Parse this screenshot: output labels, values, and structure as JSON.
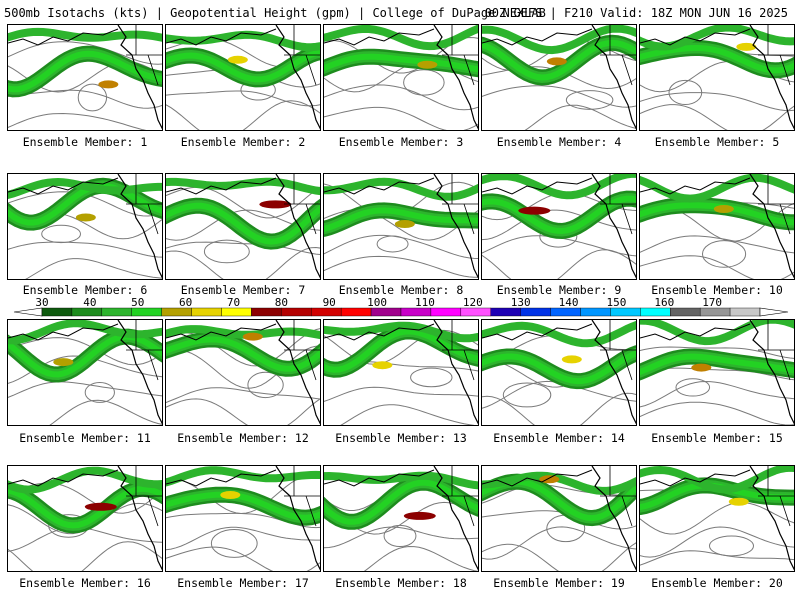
{
  "header": {
    "title": "500mb Isotachs (kts) | Geopotential Height (gpm) | College of DuPage NEXLAB",
    "run": "00Z GEFS | F210 Valid: 18Z MON JUN 16 2025"
  },
  "members": [
    {
      "label": "Ensemble Member: 1",
      "max": 80
    },
    {
      "label": "Ensemble Member: 2",
      "max": 70
    },
    {
      "label": "Ensemble Member: 3",
      "max": 60
    },
    {
      "label": "Ensemble Member: 4",
      "max": 80
    },
    {
      "label": "Ensemble Member: 5",
      "max": 70
    },
    {
      "label": "Ensemble Member: 6",
      "max": 60
    },
    {
      "label": "Ensemble Member: 7",
      "max": 90
    },
    {
      "label": "Ensemble Member: 8",
      "max": 60
    },
    {
      "label": "Ensemble Member: 9",
      "max": 90
    },
    {
      "label": "Ensemble Member: 10",
      "max": 60
    },
    {
      "label": "Ensemble Member: 11",
      "max": 60
    },
    {
      "label": "Ensemble Member: 12",
      "max": 80
    },
    {
      "label": "Ensemble Member: 13",
      "max": 70
    },
    {
      "label": "Ensemble Member: 14",
      "max": 70
    },
    {
      "label": "Ensemble Member: 15",
      "max": 80
    },
    {
      "label": "Ensemble Member: 16",
      "max": 90
    },
    {
      "label": "Ensemble Member: 17",
      "max": 70
    },
    {
      "label": "Ensemble Member: 18",
      "max": 90
    },
    {
      "label": "Ensemble Member: 19",
      "max": 80
    },
    {
      "label": "Ensemble Member: 20",
      "max": 70
    }
  ],
  "legend": {
    "ticks": [
      "30",
      "40",
      "50",
      "60",
      "70",
      "80",
      "90",
      "100",
      "110",
      "120",
      "130",
      "140",
      "150",
      "160",
      "170"
    ],
    "colors": [
      "#0f5a0f",
      "#1e8c1e",
      "#2db42d",
      "#23d223",
      "#b4a000",
      "#e6d200",
      "#ffff00",
      "#8c0000",
      "#b40000",
      "#d20000",
      "#ff0000",
      "#a0008c",
      "#c800c8",
      "#ff00ff",
      "#ff50ff",
      "#1e00b4",
      "#0032e6",
      "#0064ff",
      "#0096ff",
      "#00c8ff",
      "#00ffff",
      "#646464",
      "#969696",
      "#c8c8c8"
    ]
  }
}
